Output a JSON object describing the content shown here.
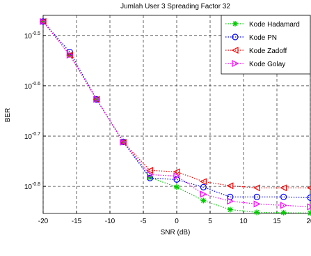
{
  "chart_data": {
    "type": "line",
    "title": "Jumlah User 3 Spreading Factor 32",
    "x_label": "SNR (dB)",
    "y_label": "BER",
    "x": [
      -20,
      -16,
      -12,
      -8,
      -4,
      0,
      4,
      8,
      12,
      16,
      20
    ],
    "xlim": [
      -20,
      20
    ],
    "xticks": [
      -20,
      -15,
      -10,
      -5,
      0,
      5,
      10,
      15,
      20
    ],
    "ylim": [
      0.14,
      0.3467
    ],
    "y_scale": "log",
    "yticks": [
      {
        "value": 0.3162,
        "label": "10-0.5"
      },
      {
        "value": 0.2512,
        "label": "10-0.6"
      },
      {
        "value": 0.1995,
        "label": "10-0.7"
      },
      {
        "value": 0.1585,
        "label": "10-0.8"
      }
    ],
    "grid": true,
    "legend": "upper right",
    "series": [
      {
        "name": "Kode Hadamard",
        "color": "#00cc00",
        "marker": "star",
        "values": [
          0.337,
          0.289,
          0.236,
          0.194,
          0.165,
          0.158,
          0.1485,
          0.1425,
          0.1407,
          0.1405,
          0.1403
        ]
      },
      {
        "name": "Kode PN",
        "color": "#0000ff",
        "marker": "circle",
        "values": [
          0.337,
          0.293,
          0.236,
          0.1943,
          0.1646,
          0.1635,
          0.1579,
          0.151,
          0.151,
          0.151,
          0.1505
        ]
      },
      {
        "name": "Kode Zadoff",
        "color": "#ff0000",
        "marker": "triangle-left",
        "values": [
          0.337,
          0.289,
          0.236,
          0.194,
          0.1705,
          0.1694,
          0.162,
          0.1589,
          0.1574,
          0.1574,
          0.1574
        ]
      },
      {
        "name": "Kode Golay",
        "color": "#ff00ff",
        "marker": "triangle-right",
        "values": [
          0.337,
          0.289,
          0.236,
          0.194,
          0.1672,
          0.1661,
          0.1529,
          0.1481,
          0.1462,
          0.1453,
          0.1443
        ]
      }
    ]
  }
}
